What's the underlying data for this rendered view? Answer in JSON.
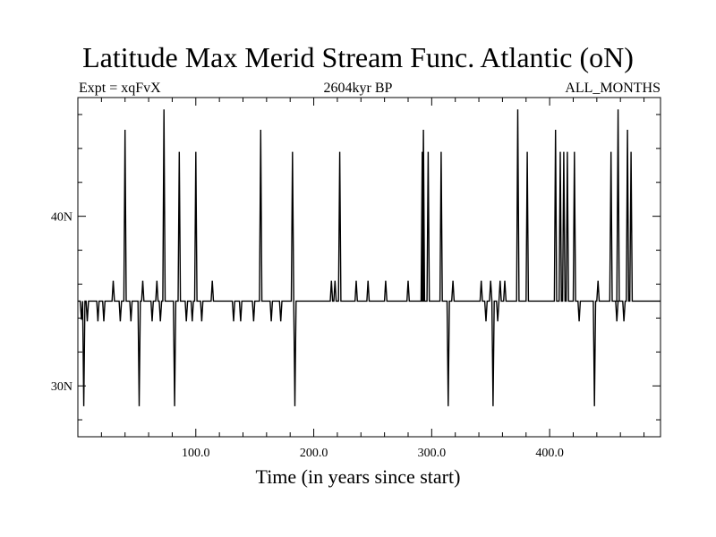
{
  "chart_data": {
    "type": "line",
    "title": "Latitude Max Merid Stream Func. Atlantic (oN)",
    "subtitle_left": "Expt = xqFvX",
    "subtitle_center": "2604kyr BP",
    "subtitle_right": "ALL_MONTHS",
    "xlabel": "Time (in years since start)",
    "ylabel": "",
    "xlim": [
      0,
      494
    ],
    "ylim": [
      27,
      47
    ],
    "x_ticks": [
      100,
      200,
      300,
      400
    ],
    "x_tick_labels": [
      "100.0",
      "200.0",
      "300.0",
      "400.0"
    ],
    "y_ticks": [
      30,
      40
    ],
    "y_tick_labels": [
      "30N",
      "40N"
    ],
    "baseline": 35,
    "grid": false,
    "series": [
      {
        "color": "#000000",
        "spikes": [
          [
            3,
            33.9
          ],
          [
            5,
            28.8
          ],
          [
            8,
            33.8
          ],
          [
            17,
            33.8
          ],
          [
            22,
            33.8
          ],
          [
            30,
            36.2
          ],
          [
            36,
            33.8
          ],
          [
            40,
            45.1
          ],
          [
            45,
            33.8
          ],
          [
            52,
            28.8
          ],
          [
            55,
            36.2
          ],
          [
            63,
            33.8
          ],
          [
            67,
            36.2
          ],
          [
            70,
            33.8
          ],
          [
            73,
            46.3
          ],
          [
            82,
            28.8
          ],
          [
            86,
            43.8
          ],
          [
            92,
            33.8
          ],
          [
            97,
            33.8
          ],
          [
            100,
            43.8
          ],
          [
            105,
            33.8
          ],
          [
            114,
            36.2
          ],
          [
            132,
            33.8
          ],
          [
            138,
            33.8
          ],
          [
            149,
            33.8
          ],
          [
            155,
            45.1
          ],
          [
            164,
            33.8
          ],
          [
            172,
            33.8
          ],
          [
            182,
            43.8
          ],
          [
            184,
            28.8
          ],
          [
            215,
            36.2
          ],
          [
            218,
            36.2
          ],
          [
            222,
            43.8
          ],
          [
            236,
            36.2
          ],
          [
            246,
            36.2
          ],
          [
            261,
            36.2
          ],
          [
            280,
            36.2
          ],
          [
            292,
            43.8
          ],
          [
            293,
            45.1
          ],
          [
            297,
            43.8
          ],
          [
            308,
            43.8
          ],
          [
            314,
            28.8
          ],
          [
            318,
            36.2
          ],
          [
            342,
            36.2
          ],
          [
            346,
            33.8
          ],
          [
            350,
            36.2
          ],
          [
            352,
            28.8
          ],
          [
            356,
            33.8
          ],
          [
            358,
            36.2
          ],
          [
            362,
            36.2
          ],
          [
            373,
            46.3
          ],
          [
            381,
            43.8
          ],
          [
            405,
            45.1
          ],
          [
            409,
            43.8
          ],
          [
            412,
            43.8
          ],
          [
            415,
            43.8
          ],
          [
            421,
            43.8
          ],
          [
            425,
            33.8
          ],
          [
            438,
            28.8
          ],
          [
            441,
            36.2
          ],
          [
            452,
            43.8
          ],
          [
            457,
            33.8
          ],
          [
            458,
            46.3
          ],
          [
            463,
            33.8
          ],
          [
            466,
            45.1
          ],
          [
            469,
            43.8
          ]
        ]
      }
    ]
  }
}
